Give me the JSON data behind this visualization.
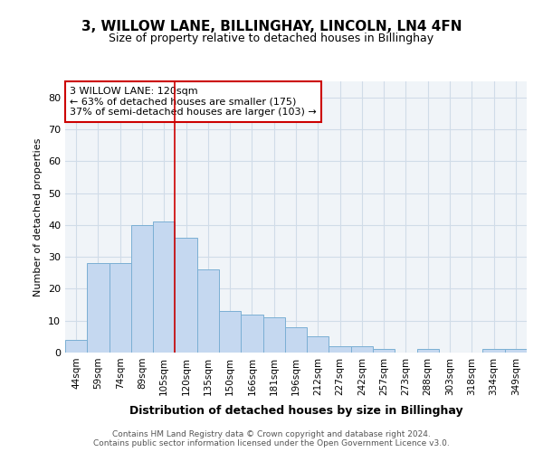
{
  "title": "3, WILLOW LANE, BILLINGHAY, LINCOLN, LN4 4FN",
  "subtitle": "Size of property relative to detached houses in Billinghay",
  "xlabel": "Distribution of detached houses by size in Billinghay",
  "ylabel": "Number of detached properties",
  "categories": [
    "44sqm",
    "59sqm",
    "74sqm",
    "89sqm",
    "105sqm",
    "120sqm",
    "135sqm",
    "150sqm",
    "166sqm",
    "181sqm",
    "196sqm",
    "212sqm",
    "227sqm",
    "242sqm",
    "257sqm",
    "273sqm",
    "288sqm",
    "303sqm",
    "318sqm",
    "334sqm",
    "349sqm"
  ],
  "values": [
    4,
    28,
    28,
    40,
    41,
    36,
    26,
    13,
    12,
    11,
    8,
    5,
    2,
    2,
    1,
    0,
    1,
    0,
    0,
    1,
    1
  ],
  "bar_color": "#c5d8f0",
  "bar_edge_color": "#7bafd4",
  "highlight_bar_index": 5,
  "red_line_x": 5,
  "annotation_text": "3 WILLOW LANE: 120sqm\n← 63% of detached houses are smaller (175)\n37% of semi-detached houses are larger (103) →",
  "annotation_box_color": "#ffffff",
  "annotation_box_edge_color": "#cc0000",
  "ylim": [
    0,
    85
  ],
  "yticks": [
    0,
    10,
    20,
    30,
    40,
    50,
    60,
    70,
    80
  ],
  "footer_text": "Contains HM Land Registry data © Crown copyright and database right 2024.\nContains public sector information licensed under the Open Government Licence v3.0.",
  "grid_color": "#d0dce8",
  "background_color": "#f0f4f8"
}
